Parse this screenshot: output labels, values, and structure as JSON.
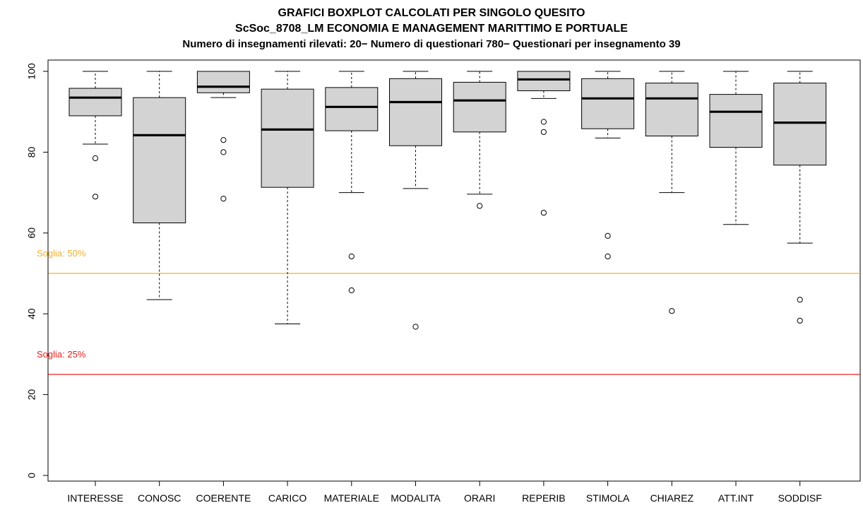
{
  "chart_data": {
    "type": "boxplot",
    "title_lines": [
      "GRAFICI BOXPLOT CALCOLATI PER SINGOLO QUESITO",
      "ScSoc_8708_LM ECONOMIA E MANAGEMENT MARITTIMO E PORTUALE",
      "Numero di insegnamenti rilevati: 20− Numero di questionari 780− Questionari per insegnamento 39"
    ],
    "ylim": [
      0,
      100
    ],
    "yticks": [
      "0",
      "20",
      "40",
      "60",
      "80",
      "100"
    ],
    "grid": false,
    "thresholds": [
      {
        "value": 50,
        "label": "Soglia: 50%",
        "color": "#f0b030"
      },
      {
        "value": 25,
        "label": "Soglia: 25%",
        "color": "#e8201c"
      }
    ],
    "box_color": "#d3d3d3",
    "categories": [
      "INTERESSE",
      "CONOSC",
      "COERENTE",
      "CARICO",
      "MATERIALE",
      "MODALITA",
      "ORARI",
      "REPERIB",
      "STIMOLA",
      "CHIAREZ",
      "ATT.INT",
      "SODDISF"
    ],
    "boxes": [
      {
        "whisker_low": 82,
        "q1": 89,
        "median": 93.5,
        "q3": 95.8,
        "whisker_high": 100,
        "outliers": [
          78.5,
          69
        ]
      },
      {
        "whisker_low": 43.5,
        "q1": 62.5,
        "median": 84.2,
        "q3": 93.5,
        "whisker_high": 100,
        "outliers": []
      },
      {
        "whisker_low": 93.5,
        "q1": 94.7,
        "median": 96.2,
        "q3": 100,
        "whisker_high": 100,
        "outliers": [
          83,
          80,
          68.5
        ]
      },
      {
        "whisker_low": 37.5,
        "q1": 71.3,
        "median": 85.6,
        "q3": 95.6,
        "whisker_high": 100,
        "outliers": []
      },
      {
        "whisker_low": 70,
        "q1": 85.3,
        "median": 91.2,
        "q3": 96,
        "whisker_high": 100,
        "outliers": [
          54.2,
          45.8
        ]
      },
      {
        "whisker_low": 71,
        "q1": 81.6,
        "median": 92.4,
        "q3": 98.2,
        "whisker_high": 100,
        "outliers": [
          36.8
        ]
      },
      {
        "whisker_low": 69.6,
        "q1": 85,
        "median": 92.8,
        "q3": 97.3,
        "whisker_high": 100,
        "outliers": [
          66.7
        ]
      },
      {
        "whisker_low": 93.3,
        "q1": 95.2,
        "median": 98,
        "q3": 100,
        "whisker_high": 100,
        "outliers": [
          87.5,
          85,
          65
        ]
      },
      {
        "whisker_low": 83.5,
        "q1": 85.8,
        "median": 93.3,
        "q3": 98.2,
        "whisker_high": 100,
        "outliers": [
          59.3,
          54.2
        ]
      },
      {
        "whisker_low": 70,
        "q1": 84,
        "median": 93.3,
        "q3": 97.1,
        "whisker_high": 100,
        "outliers": [
          40.7
        ]
      },
      {
        "whisker_low": 62.1,
        "q1": 81.2,
        "median": 90,
        "q3": 94.3,
        "whisker_high": 100,
        "outliers": []
      },
      {
        "whisker_low": 57.5,
        "q1": 76.8,
        "median": 87.3,
        "q3": 97.1,
        "whisker_high": 100,
        "outliers": [
          43.5,
          38.3
        ]
      }
    ]
  }
}
